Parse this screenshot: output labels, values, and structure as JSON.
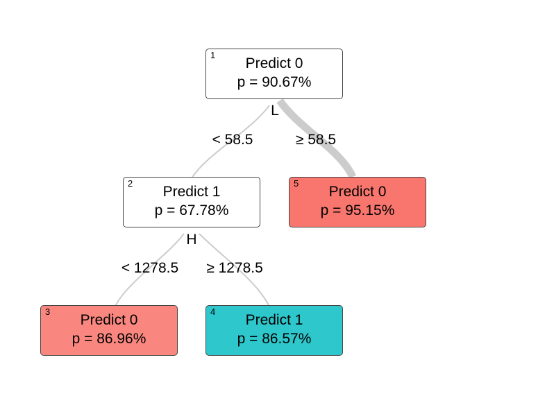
{
  "colors": {
    "node_white": "#ffffff",
    "node_class0": "#f8766d",
    "node_class0_light": "#f9877f",
    "node_class1": "#2ec7cb",
    "edge": "#cccccc",
    "border": "#444444"
  },
  "nodes": [
    {
      "id": "1",
      "prediction": "Predict 0",
      "probability": "p = 90.67%"
    },
    {
      "id": "2",
      "prediction": "Predict 1",
      "probability": "p = 67.78%"
    },
    {
      "id": "3",
      "prediction": "Predict 0",
      "probability": "p = 86.96%"
    },
    {
      "id": "4",
      "prediction": "Predict 1",
      "probability": "p = 86.57%"
    },
    {
      "id": "5",
      "prediction": "Predict 0",
      "probability": "p = 95.15%"
    }
  ],
  "splits": [
    {
      "variable": "L",
      "left": "< 58.5",
      "right": "≥ 58.5"
    },
    {
      "variable": "H",
      "left": "< 1278.5",
      "right": "≥ 1278.5"
    }
  ]
}
